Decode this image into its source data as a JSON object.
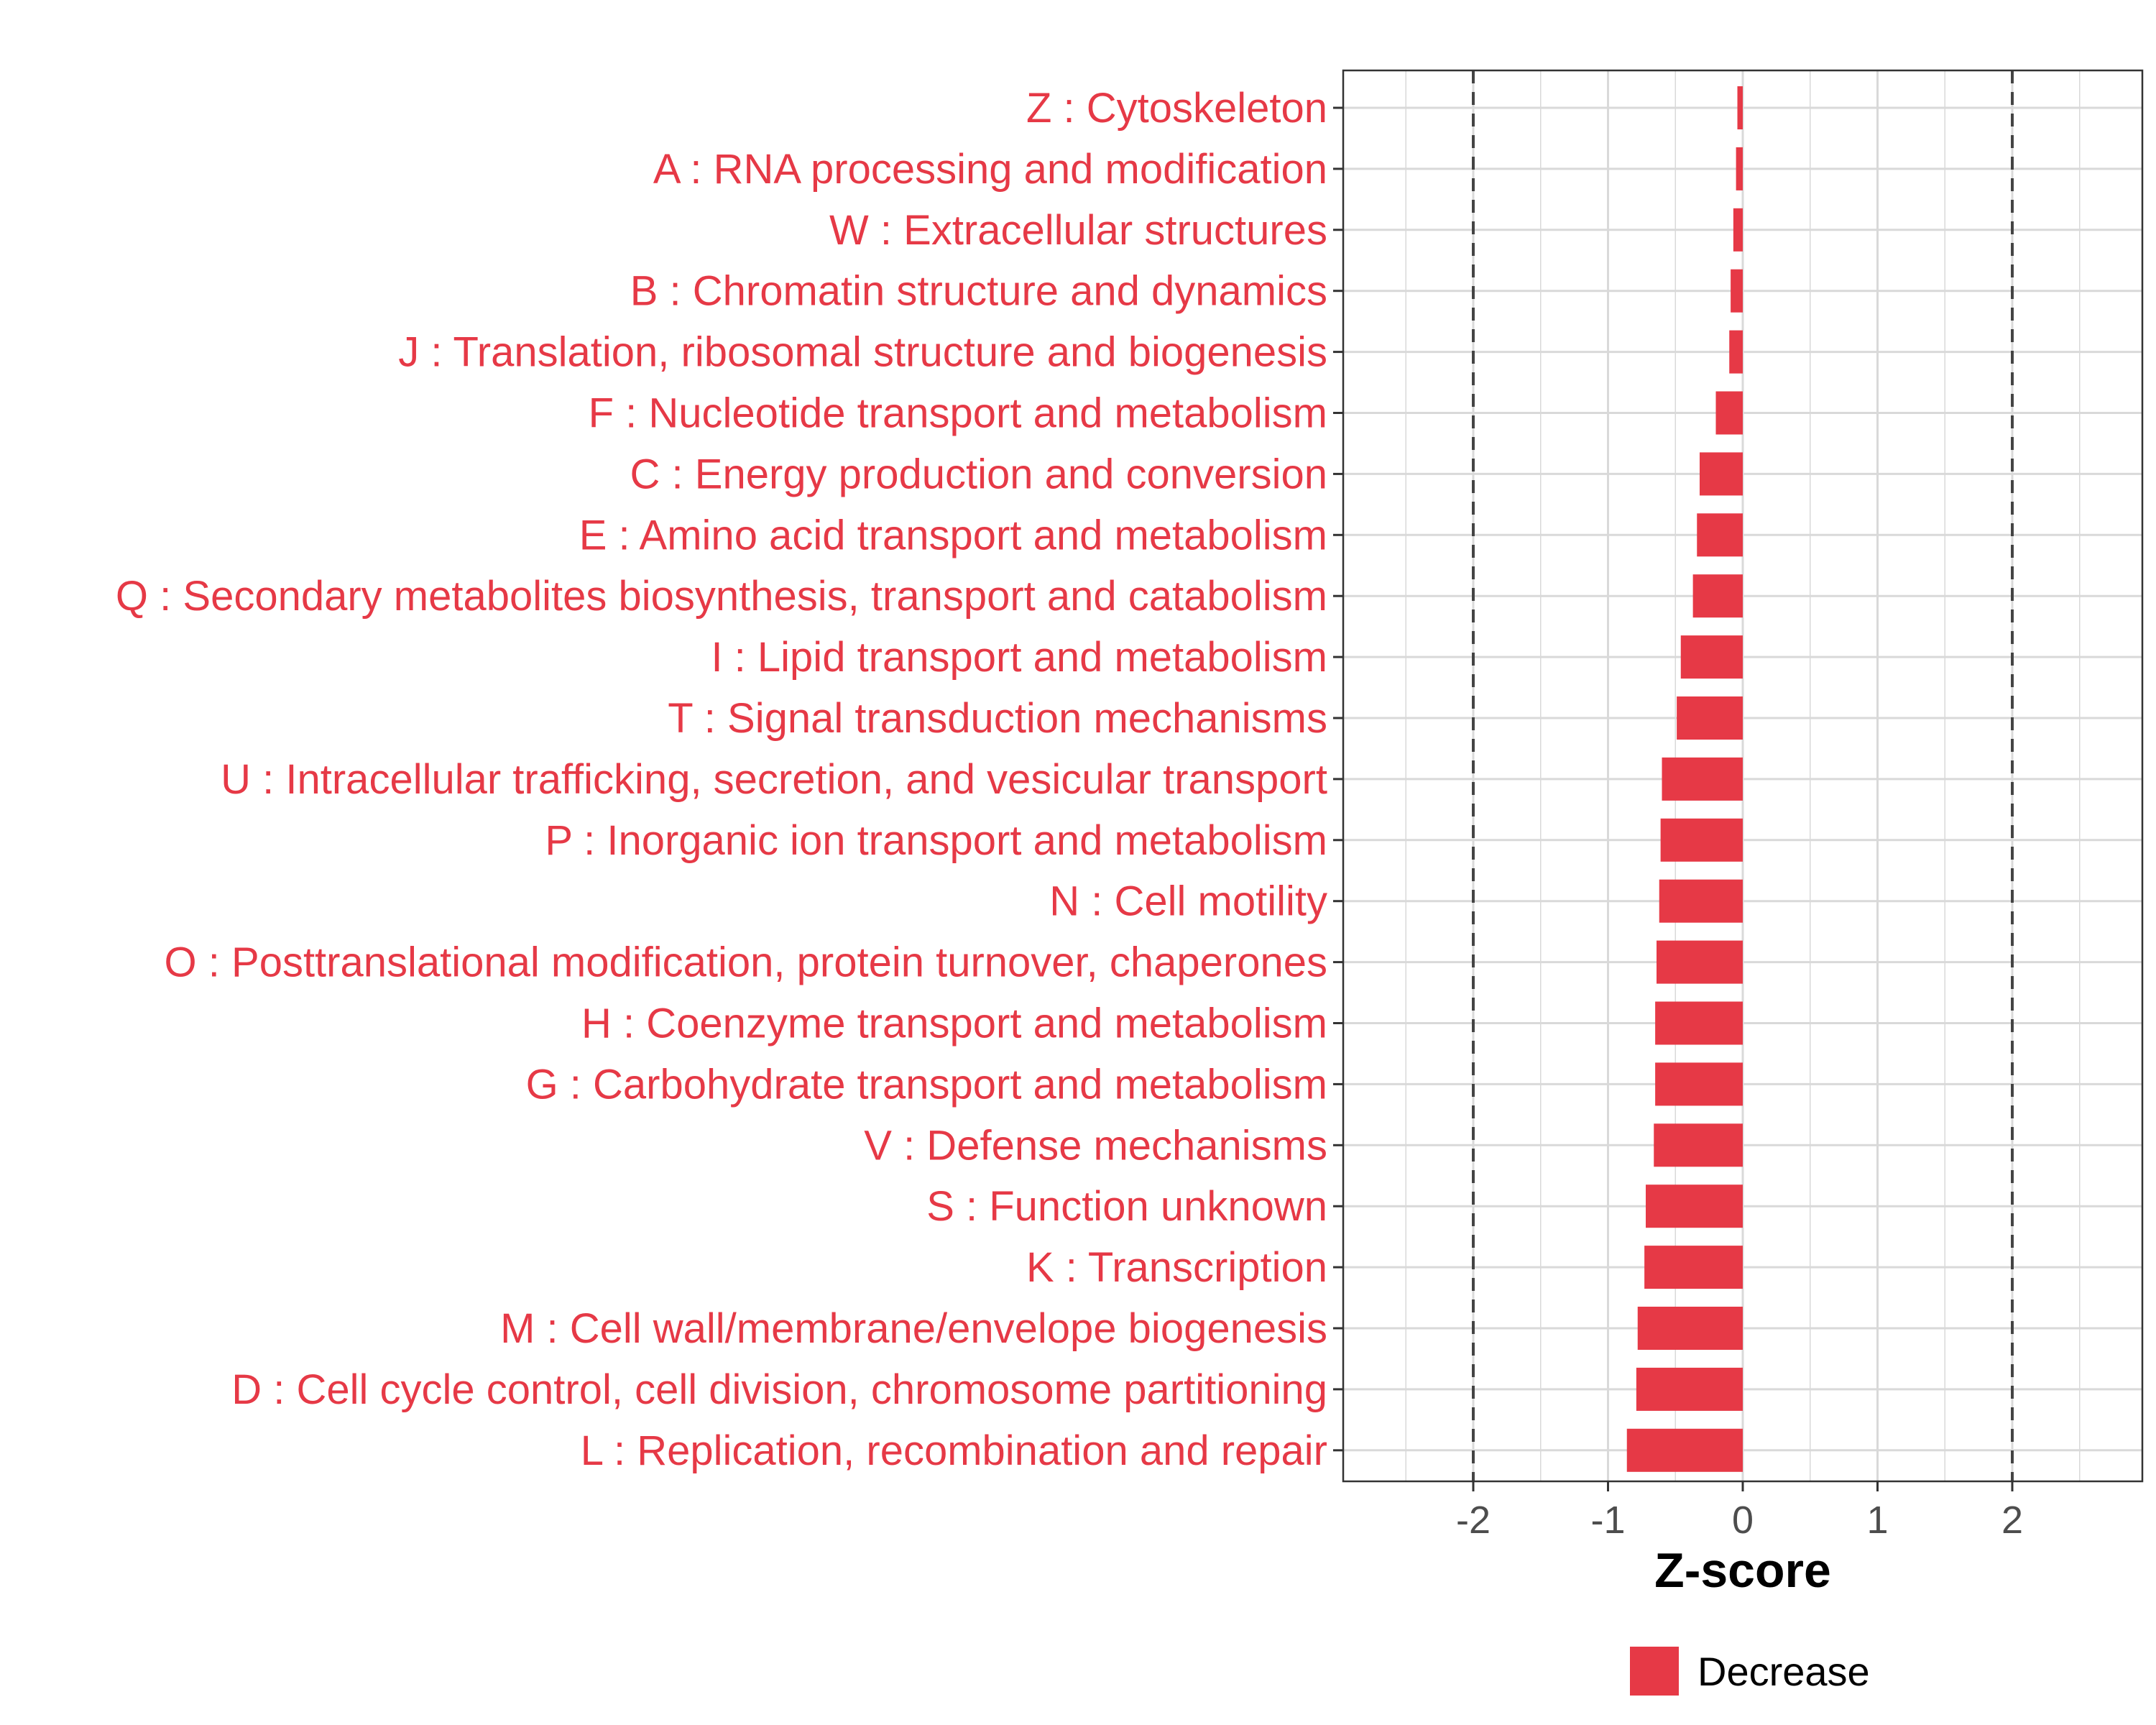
{
  "chart_data": {
    "type": "bar",
    "orientation": "horizontal",
    "title": "",
    "xlabel": "Z-score",
    "ylabel": "",
    "xlim": [
      -3,
      3
    ],
    "x_ticks": [
      -2,
      -1,
      0,
      1,
      2
    ],
    "x_tick_labels": [
      "-2",
      "-1",
      "0",
      "1",
      "2"
    ],
    "reference_lines": [
      -2,
      2
    ],
    "grid": true,
    "categories": [
      "Z : Cytoskeleton",
      "A : RNA processing and modification",
      "W : Extracellular structures",
      "B : Chromatin structure and dynamics",
      "J : Translation, ribosomal structure and biogenesis",
      "F : Nucleotide transport and metabolism",
      "C : Energy production and conversion",
      "E : Amino acid transport and metabolism",
      "Q : Secondary metabolites biosynthesis, transport and catabolism",
      "I : Lipid transport and metabolism",
      "T : Signal transduction mechanisms",
      "U : Intracellular trafficking, secretion, and vesicular transport",
      "P : Inorganic ion transport and metabolism",
      "N : Cell motility",
      "O : Posttranslational modification, protein turnover, chaperones",
      "H : Coenzyme transport and metabolism",
      "G : Carbohydrate transport and metabolism",
      "V : Defense mechanisms",
      "S : Function unknown",
      "K : Transcription",
      "M : Cell wall/membrane/envelope biogenesis",
      "D : Cell cycle control, cell division, chromosome partitioning",
      "L : Replication, recombination and repair"
    ],
    "values": [
      -0.04,
      -0.05,
      -0.07,
      -0.09,
      -0.1,
      -0.2,
      -0.32,
      -0.34,
      -0.37,
      -0.46,
      -0.49,
      -0.6,
      -0.61,
      -0.62,
      -0.64,
      -0.65,
      -0.65,
      -0.66,
      -0.72,
      -0.73,
      -0.78,
      -0.79,
      -0.86
    ],
    "series": [
      {
        "name": "Decrease",
        "color": "#e63946"
      }
    ],
    "legend": {
      "position": "bottom",
      "entries": [
        "Decrease"
      ]
    }
  },
  "colors": {
    "bar": "#e63946",
    "label": "#e63946",
    "grid": "#d9d9d9",
    "axis_text": "#4d4d4d",
    "reference_line": "#444444",
    "border": "#333333"
  }
}
